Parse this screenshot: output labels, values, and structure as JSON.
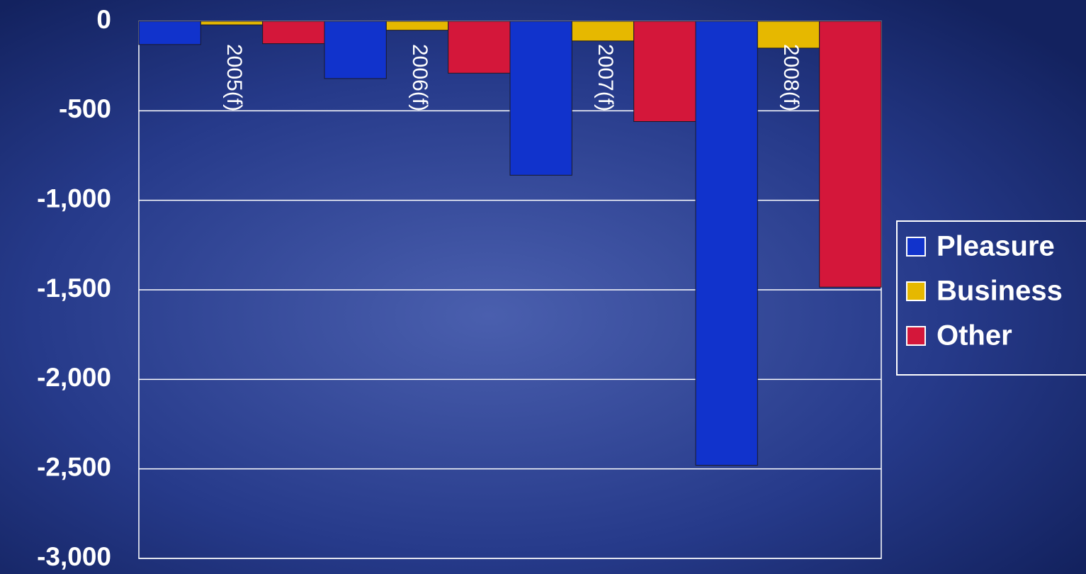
{
  "chart_data": {
    "type": "bar",
    "categories": [
      "2005(f)",
      "2006(f)",
      "2007(f)",
      "2008(f)"
    ],
    "series": [
      {
        "name": "Pleasure",
        "color": "#1133cc",
        "values": [
          -130,
          -320,
          -860,
          -2480
        ]
      },
      {
        "name": "Business",
        "color": "#e6b800",
        "values": [
          -20,
          -50,
          -110,
          -150
        ]
      },
      {
        "name": "Other",
        "color": "#d4173a",
        "values": [
          -125,
          -290,
          -560,
          -1485
        ]
      }
    ],
    "ylim": [
      -3000,
      0
    ],
    "yticks": [
      0,
      -500,
      {
        "value": -1000,
        "label": "-1,000"
      },
      {
        "value": -1500,
        "label": "-1,500"
      },
      {
        "value": -2000,
        "label": "-2,000"
      },
      {
        "value": -2500,
        "label": "-2,500"
      },
      {
        "value": -3000,
        "label": "-3,000"
      }
    ],
    "grid": true,
    "legend": "right"
  }
}
